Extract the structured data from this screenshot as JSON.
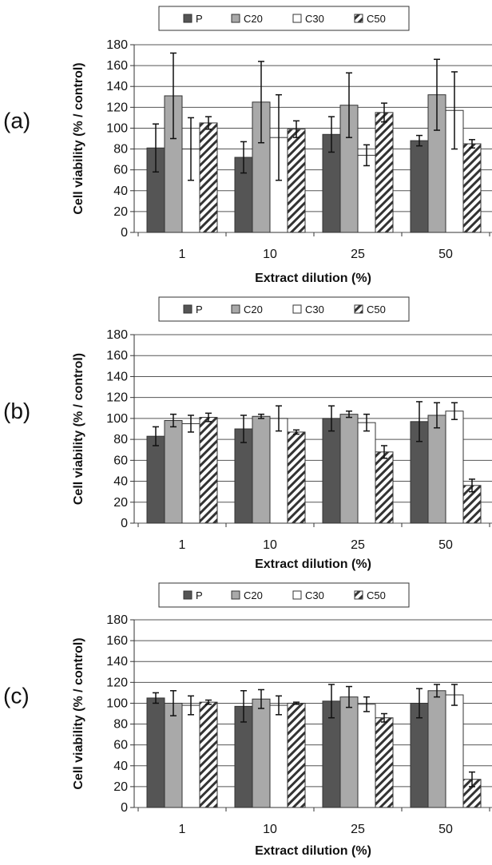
{
  "figure": {
    "legend_labels": [
      "P",
      "C20",
      "C30",
      "C50"
    ],
    "series_styles": [
      {
        "fill": "#555555",
        "pattern": "solid"
      },
      {
        "fill": "#a9a9a9",
        "pattern": "solid"
      },
      {
        "fill": "#ffffff",
        "pattern": "solid"
      },
      {
        "fill": "#ffffff",
        "pattern": "diagonal-hatch"
      }
    ]
  },
  "chart_data": [
    {
      "type": "bar",
      "panel_label": "(a)",
      "categories": [
        "1",
        "10",
        "25",
        "50"
      ],
      "xlabel": "Extract dilution (%)",
      "ylabel": "Cell viability (% / control)",
      "ylim": [
        0,
        180
      ],
      "yticks": [
        0,
        20,
        40,
        60,
        80,
        100,
        120,
        140,
        160,
        180
      ],
      "grid": true,
      "legend": "top",
      "series": [
        {
          "name": "P",
          "values": [
            81,
            72,
            94,
            88
          ],
          "errors": [
            23,
            15,
            17,
            5
          ]
        },
        {
          "name": "C20",
          "values": [
            131,
            125,
            122,
            132
          ],
          "errors": [
            41,
            39,
            31,
            34
          ]
        },
        {
          "name": "C30",
          "values": [
            80,
            91,
            74,
            117
          ],
          "errors": [
            30,
            41,
            10,
            37
          ]
        },
        {
          "name": "C50",
          "values": [
            105,
            99,
            115,
            85
          ],
          "errors": [
            6,
            8,
            9,
            4
          ]
        }
      ]
    },
    {
      "type": "bar",
      "panel_label": "(b)",
      "categories": [
        "1",
        "10",
        "25",
        "50"
      ],
      "xlabel": "Extract dilution (%)",
      "ylabel": "Cell viability (% / control)",
      "ylim": [
        0,
        180
      ],
      "yticks": [
        0,
        20,
        40,
        60,
        80,
        100,
        120,
        140,
        160,
        180
      ],
      "grid": true,
      "legend": "top",
      "series": [
        {
          "name": "P",
          "values": [
            83,
            90,
            100,
            97
          ],
          "errors": [
            9,
            13,
            12,
            19
          ]
        },
        {
          "name": "C20",
          "values": [
            98,
            102,
            104,
            103
          ],
          "errors": [
            6,
            2,
            3,
            12
          ]
        },
        {
          "name": "C30",
          "values": [
            95,
            100,
            96,
            107
          ],
          "errors": [
            8,
            12,
            8,
            8
          ]
        },
        {
          "name": "C50",
          "values": [
            101,
            87,
            68,
            36
          ],
          "errors": [
            4,
            2,
            6,
            6
          ]
        }
      ]
    },
    {
      "type": "bar",
      "panel_label": "(c)",
      "categories": [
        "1",
        "10",
        "25",
        "50"
      ],
      "xlabel": "Extract dilution (%)",
      "ylabel": "Cell viability (% / control)",
      "ylim": [
        0,
        180
      ],
      "yticks": [
        0,
        20,
        40,
        60,
        80,
        100,
        120,
        140,
        160,
        180
      ],
      "grid": true,
      "legend": "top",
      "series": [
        {
          "name": "P",
          "values": [
            105,
            97,
            102,
            100
          ],
          "errors": [
            5,
            15,
            16,
            14
          ]
        },
        {
          "name": "C20",
          "values": [
            100,
            104,
            106,
            112
          ],
          "errors": [
            12,
            9,
            10,
            6
          ]
        },
        {
          "name": "C30",
          "values": [
            98,
            98,
            99,
            108
          ],
          "errors": [
            9,
            9,
            7,
            10
          ]
        },
        {
          "name": "C50",
          "values": [
            101,
            100,
            86,
            27
          ],
          "errors": [
            2,
            1,
            4,
            7
          ]
        }
      ]
    }
  ]
}
